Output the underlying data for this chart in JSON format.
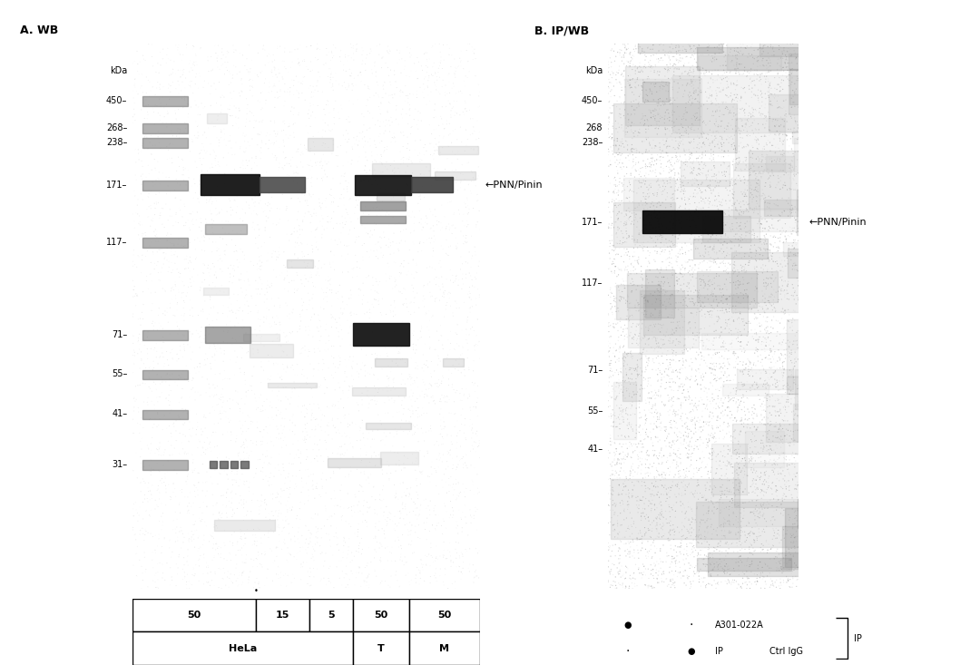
{
  "title_A": "A. WB",
  "title_B": "B. IP/WB",
  "mw_marks_A": [
    450,
    268,
    238,
    171,
    117,
    71,
    55,
    41,
    31
  ],
  "mw_marks_B": [
    450,
    268,
    238,
    171,
    117,
    71,
    55,
    41
  ],
  "pnn_label_A": "←PNN/Pinin",
  "pnn_label_B": "←PNN/Pinin",
  "lane_labels": [
    "50",
    "15",
    "5",
    "50",
    "50"
  ],
  "group_labels": [
    "HeLa",
    "T",
    "M"
  ],
  "ip_row1_text": "A301-022A",
  "ip_row2_text": "Ctrl IgG",
  "ip_bracket": "IP",
  "font_title": 9,
  "font_marker": 7,
  "font_label": 8,
  "font_lane": 8,
  "blot_A_bg": [
    0.85,
    0.83,
    0.8
  ],
  "blot_B_bg": [
    0.72,
    0.7,
    0.67
  ],
  "mw_ypos_A": {
    "450": 0.895,
    "268": 0.845,
    "238": 0.818,
    "171": 0.74,
    "117": 0.635,
    "71": 0.465,
    "55": 0.393,
    "41": 0.32,
    "31": 0.228
  },
  "mw_ypos_B": {
    "450": 0.895,
    "268": 0.845,
    "238": 0.818,
    "171": 0.672,
    "117": 0.56,
    "71": 0.4,
    "55": 0.326,
    "41": 0.255
  }
}
